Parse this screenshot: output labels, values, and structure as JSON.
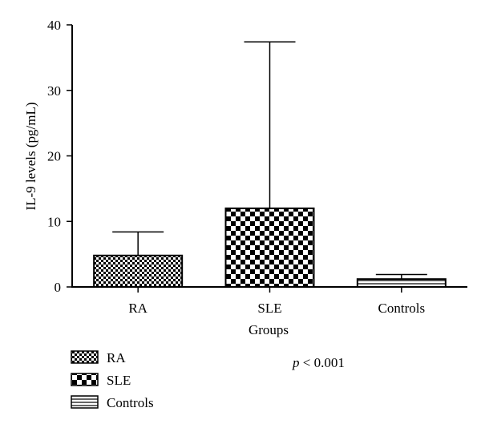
{
  "chart_data": {
    "type": "bar",
    "title": "",
    "xlabel": "Groups",
    "ylabel": "IL-9 levels (pg/mL)",
    "ylim": [
      0,
      40
    ],
    "yticks": [
      0,
      10,
      20,
      30,
      40
    ],
    "grid": false,
    "categories": [
      "RA",
      "SLE",
      "Controls"
    ],
    "values": [
      4.8,
      12.0,
      1.2
    ],
    "error_upper": [
      8.4,
      37.4,
      1.9
    ],
    "fill_patterns": [
      "small-checker",
      "large-checker",
      "horizontal-lines"
    ],
    "legend": {
      "placement": "bottom-left",
      "entries": [
        {
          "label": "RA",
          "pattern": "small-checker"
        },
        {
          "label": "SLE",
          "pattern": "large-checker"
        },
        {
          "label": "Controls",
          "pattern": "horizontal-lines"
        }
      ]
    },
    "annotation": {
      "italic": "p",
      "text": " < 0.001"
    }
  },
  "colors": {
    "ink": "#000000",
    "background": "#ffffff"
  }
}
